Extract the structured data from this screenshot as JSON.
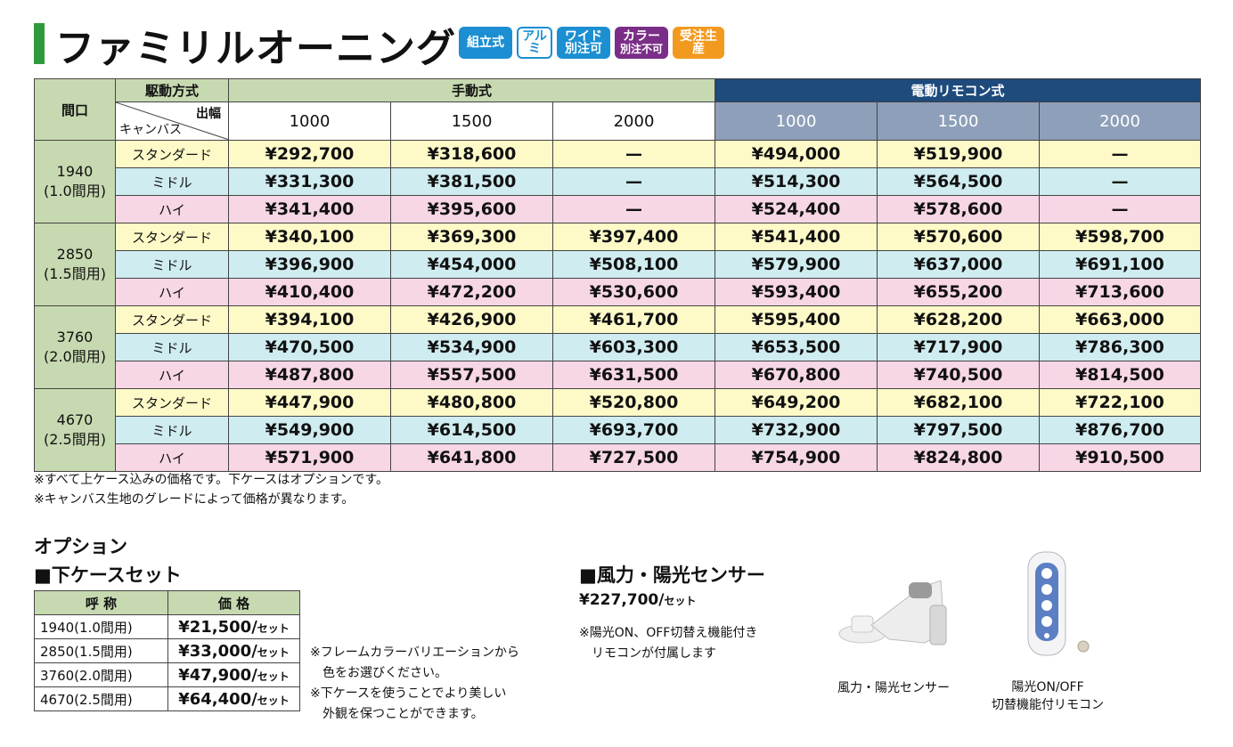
{
  "title": "ファミリルオーニング",
  "badges": {
    "kumitate": "組立式",
    "alumi": "アルミ",
    "wide_1": "ワイド",
    "wide_2": "別注可",
    "color_1": "カラー",
    "color_2": "別注不可",
    "order": "受注生産"
  },
  "table": {
    "maguchi": "間口",
    "kudou": "駆動方式",
    "deyoko": "出幅",
    "canvas": "キャンバス",
    "manual": "手動式",
    "electric": "電動リモコン式",
    "widths": [
      "1000",
      "1500",
      "2000"
    ],
    "grades": [
      "スタンダード",
      "ミドル",
      "ハイ"
    ],
    "sizes": [
      {
        "size": "1940",
        "ken": "(1.0間用)"
      },
      {
        "size": "2850",
        "ken": "(1.5間用)"
      },
      {
        "size": "3760",
        "ken": "(2.0間用)"
      },
      {
        "size": "4670",
        "ken": "(2.5間用)"
      }
    ],
    "rows": [
      [
        "¥292,700",
        "¥318,600",
        "—",
        "¥494,000",
        "¥519,900",
        "—"
      ],
      [
        "¥331,300",
        "¥381,500",
        "—",
        "¥514,300",
        "¥564,500",
        "—"
      ],
      [
        "¥341,400",
        "¥395,600",
        "—",
        "¥524,400",
        "¥578,600",
        "—"
      ],
      [
        "¥340,100",
        "¥369,300",
        "¥397,400",
        "¥541,400",
        "¥570,600",
        "¥598,700"
      ],
      [
        "¥396,900",
        "¥454,000",
        "¥508,100",
        "¥579,900",
        "¥637,000",
        "¥691,100"
      ],
      [
        "¥410,400",
        "¥472,200",
        "¥530,600",
        "¥593,400",
        "¥655,200",
        "¥713,600"
      ],
      [
        "¥394,100",
        "¥426,900",
        "¥461,700",
        "¥595,400",
        "¥628,200",
        "¥663,000"
      ],
      [
        "¥470,500",
        "¥534,900",
        "¥603,300",
        "¥653,500",
        "¥717,900",
        "¥786,300"
      ],
      [
        "¥487,800",
        "¥557,500",
        "¥631,500",
        "¥670,800",
        "¥740,500",
        "¥814,500"
      ],
      [
        "¥447,900",
        "¥480,800",
        "¥520,800",
        "¥649,200",
        "¥682,100",
        "¥722,100"
      ],
      [
        "¥549,900",
        "¥614,500",
        "¥693,700",
        "¥732,900",
        "¥797,500",
        "¥876,700"
      ],
      [
        "¥571,900",
        "¥641,800",
        "¥727,500",
        "¥754,900",
        "¥824,800",
        "¥910,500"
      ]
    ]
  },
  "notes": [
    "※すべて上ケース込みの価格です。下ケースはオプションです。",
    "※キャンバス生地のグレードによって価格が異なります。"
  ],
  "option": {
    "title": "オプション",
    "lower_case_title": "■下ケースセット",
    "col_name": "呼 称",
    "col_price": "価 格",
    "unit": "セット",
    "rows": [
      {
        "name": "1940(1.0間用)",
        "price": "¥21,500/"
      },
      {
        "name": "2850(1.5間用)",
        "price": "¥33,000/"
      },
      {
        "name": "3760(2.0間用)",
        "price": "¥47,900/"
      },
      {
        "name": "4670(2.5間用)",
        "price": "¥64,400/"
      }
    ],
    "notes": [
      "※フレームカラーバリエーションから",
      "　色をお選びください。",
      "※下ケースを使うことでより美しい",
      "　外観を保つことができます。"
    ]
  },
  "sensor": {
    "title": "■風力・陽光センサー",
    "price": "¥227,700/",
    "unit": "セット",
    "note_1": "※陽光ON、OFF切替え機能付き",
    "note_2": "　リモコンが付属します",
    "caption_sensor": "風力・陽光センサー",
    "caption_remote_1": "陽光ON/OFF",
    "caption_remote_2": "切替機能付リモコン"
  }
}
